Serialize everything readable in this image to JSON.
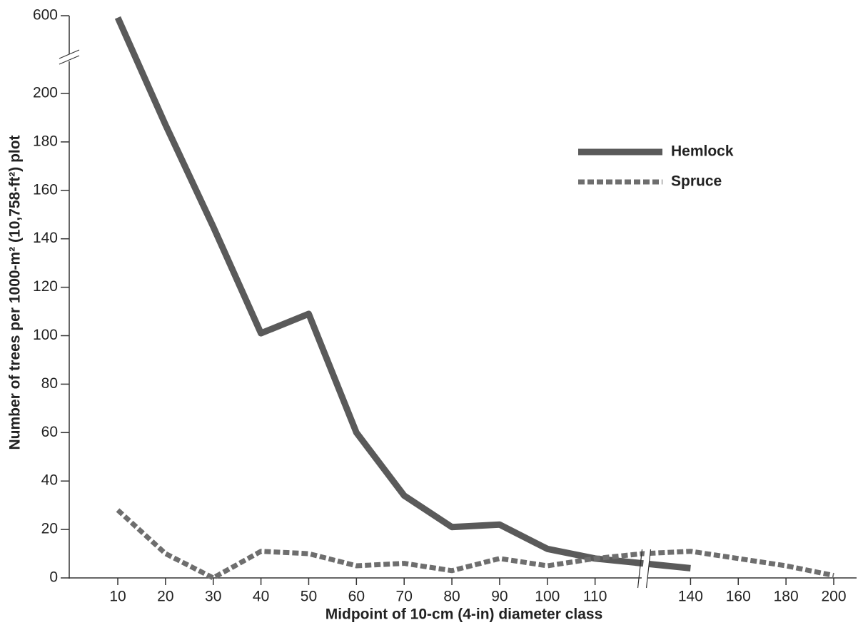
{
  "chart_data": {
    "type": "line",
    "x_label": "Midpoint of 10-cm (4-in) diameter class",
    "y_label": "Number of trees per 1000-m² (10,758-ft²) plot",
    "categories": [
      "10",
      "20",
      "30",
      "40",
      "50",
      "60",
      "70",
      "80",
      "90",
      "100",
      "110",
      null,
      "140",
      "160",
      "180",
      "200"
    ],
    "series": [
      {
        "name": "Hemlock",
        "color": "#5a5a5a",
        "dashed": false,
        "values": [
          590,
          187,
          145,
          101,
          109,
          60,
          34,
          21,
          22,
          12,
          8,
          6,
          4,
          null,
          null,
          null
        ]
      },
      {
        "name": "Spruce",
        "color": "#6e6e6e",
        "dashed": true,
        "values": [
          28,
          10,
          0,
          11,
          10,
          5,
          6,
          3,
          8,
          5,
          8,
          10,
          11,
          8,
          5,
          1
        ]
      }
    ],
    "ylim": [
      0,
      600
    ],
    "yticks": [
      0,
      20,
      40,
      60,
      80,
      100,
      120,
      140,
      160,
      180,
      200,
      600
    ],
    "y_axis_break": true,
    "x_axis_break": true,
    "legend": "upper right"
  }
}
